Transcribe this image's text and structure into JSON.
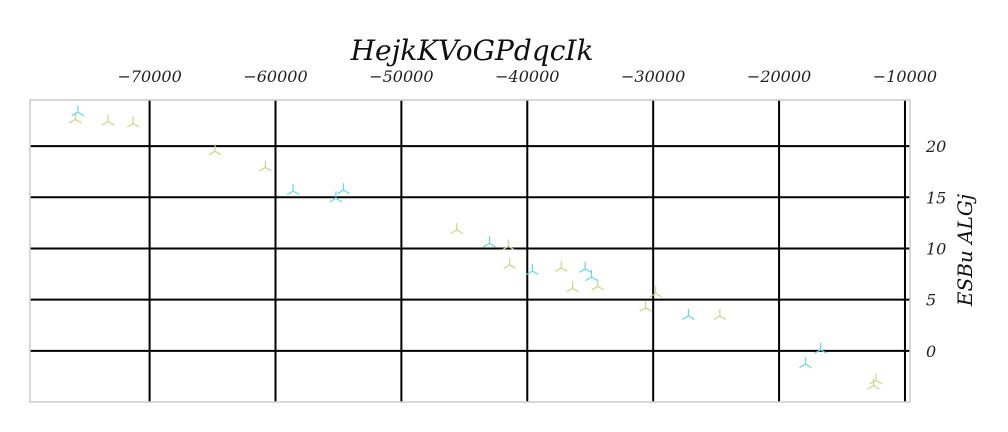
{
  "chart_data": {
    "type": "scatter",
    "title": "HejkKVoGPdqcIk",
    "xlabel": "",
    "ylabel": "ESBu ALGj",
    "x_axis_position": "top",
    "y_axis_position": "right",
    "xlim": [
      -79500,
      -9600
    ],
    "ylim": [
      -5,
      24.5
    ],
    "x_ticks": [
      -70000,
      -60000,
      -50000,
      -40000,
      -30000,
      -20000,
      -10000
    ],
    "y_ticks": [
      0,
      5,
      10,
      15,
      20
    ],
    "x_tick_labels": [
      "−70000",
      "−60000",
      "−50000",
      "−40000",
      "−30000",
      "−20000",
      "−10000"
    ],
    "y_tick_labels": [
      "0",
      "5",
      "10",
      "15",
      "20"
    ],
    "grid": true,
    "marker": "tri",
    "series": [
      {
        "color": "#c8d88a",
        "points": [
          {
            "x": -75900,
            "y": 22.6
          },
          {
            "x": -73300,
            "y": 22.4
          },
          {
            "x": -71300,
            "y": 22.2
          },
          {
            "x": -64800,
            "y": 19.5
          },
          {
            "x": -60800,
            "y": 17.9
          },
          {
            "x": -45600,
            "y": 11.8
          },
          {
            "x": -41500,
            "y": 10.2
          },
          {
            "x": -41400,
            "y": 8.4
          },
          {
            "x": -37300,
            "y": 8.1
          },
          {
            "x": -36400,
            "y": 6.1
          },
          {
            "x": -34400,
            "y": 6.3
          },
          {
            "x": -30600,
            "y": 4.2
          },
          {
            "x": -29800,
            "y": 5.6
          },
          {
            "x": -24700,
            "y": 3.4
          },
          {
            "x": -12500,
            "y": -3.4
          },
          {
            "x": -12300,
            "y": -2.9
          }
        ]
      },
      {
        "color": "#66d8dc",
        "points": [
          {
            "x": -75700,
            "y": 23.3
          },
          {
            "x": -58600,
            "y": 15.6
          },
          {
            "x": -55200,
            "y": 14.9
          },
          {
            "x": -54600,
            "y": 15.7
          },
          {
            "x": -43000,
            "y": 10.5
          },
          {
            "x": -39600,
            "y": 7.8
          },
          {
            "x": -35400,
            "y": 8.0
          },
          {
            "x": -34900,
            "y": 7.2
          },
          {
            "x": -27200,
            "y": 3.4
          },
          {
            "x": -17900,
            "y": -1.3
          },
          {
            "x": -16700,
            "y": 0.1
          }
        ]
      }
    ]
  }
}
